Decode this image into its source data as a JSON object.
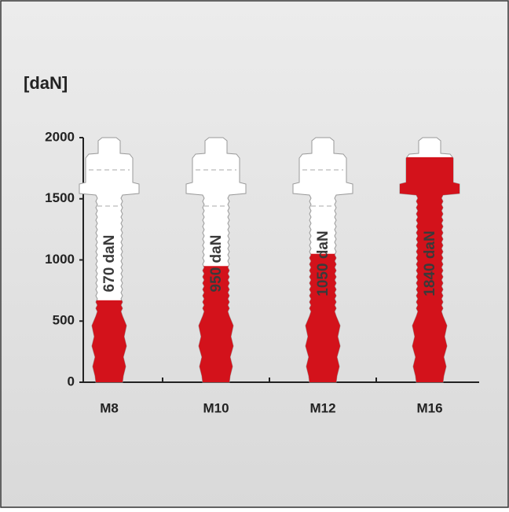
{
  "chart_data": {
    "type": "bar",
    "y_label": "[daN]",
    "categories": [
      "M8",
      "M10",
      "M12",
      "M16"
    ],
    "values": [
      670,
      950,
      1050,
      1840
    ],
    "value_labels": [
      "670 daN",
      "950 daN",
      "1050 daN",
      "1840 daN"
    ],
    "color": "#d3121b",
    "ylim": [
      0,
      2000
    ],
    "yticks": [
      0,
      500,
      1000,
      1500,
      2000
    ]
  }
}
